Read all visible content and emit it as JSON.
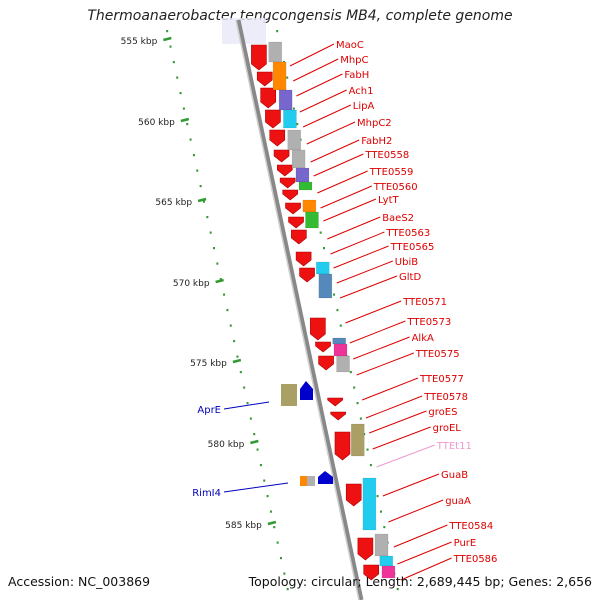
{
  "title": "Thermoanaerobacter tengcongensis MB4, complete genome",
  "accession": "Accession: NC_003869",
  "summary": "Topology: circular; Length: 2,689,445 bp; Genes: 2,656",
  "scale_labels": [
    "555 kbp",
    "560 kbp",
    "565 kbp",
    "570 kbp",
    "575 kbp",
    "580 kbp",
    "585 kbp"
  ],
  "colors": {
    "gene_arrow": "#ee1111",
    "label_forward": "#dd0000",
    "label_reverse": "#0000bb",
    "label_rna": "#ee99cc",
    "backbone": "#888888",
    "scale_dots": "#339933",
    "cog_gray": "#b0b0b0",
    "cog_purple": "#7766cc",
    "cog_cyan": "#22ccee",
    "cog_green": "#33bb33",
    "cog_orange": "#ff8800",
    "cog_olive": "#aaa066",
    "cog_blue": "#0000cc",
    "cog_magenta": "#ee3399",
    "cog_steel": "#5588bb"
  },
  "right_genes": [
    {
      "name": "MaoC"
    },
    {
      "name": "MhpC"
    },
    {
      "name": "FabH"
    },
    {
      "name": "Ach1"
    },
    {
      "name": "LipA"
    },
    {
      "name": "MhpC2"
    },
    {
      "name": "FabH2"
    },
    {
      "name": "TTE0558"
    },
    {
      "name": "TTE0559"
    },
    {
      "name": "TTE0560"
    },
    {
      "name": "LytT"
    },
    {
      "name": "BaeS2"
    },
    {
      "name": "TTE0563"
    },
    {
      "name": "TTE0565"
    },
    {
      "name": "UbiB"
    },
    {
      "name": "GltD"
    },
    {
      "name": "TTE0571"
    },
    {
      "name": "TTE0573"
    },
    {
      "name": "AlkA"
    },
    {
      "name": "TTE0575"
    },
    {
      "name": "TTE0577"
    },
    {
      "name": "TTE0578"
    },
    {
      "name": "groES"
    },
    {
      "name": "groEL"
    },
    {
      "name": "TTEt11"
    },
    {
      "name": "GuaB"
    },
    {
      "name": "guaA"
    },
    {
      "name": "TTE0584"
    },
    {
      "name": "PurE"
    },
    {
      "name": "TTE0586"
    }
  ],
  "left_genes": [
    {
      "name": "AprE"
    },
    {
      "name": "RimI4"
    }
  ]
}
